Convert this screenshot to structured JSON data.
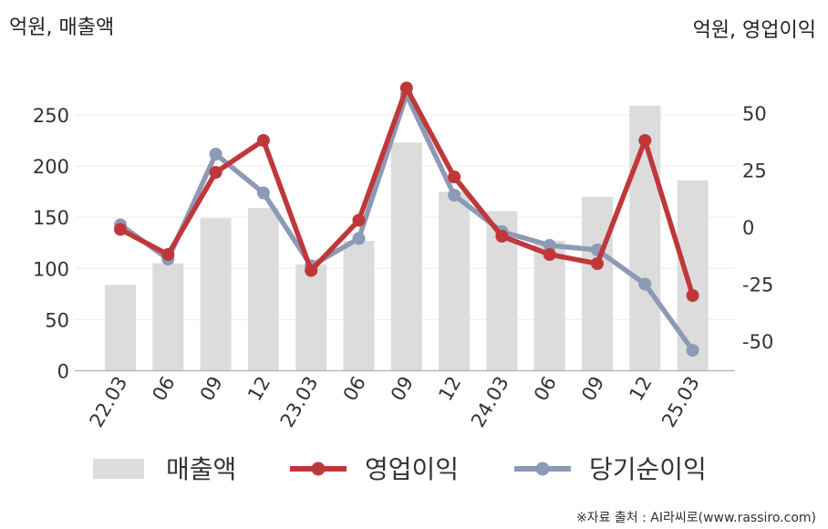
{
  "chart_data": {
    "type": "bar+line",
    "left_axis_label": "억원, 매출액",
    "right_axis_label": "억원, 영업이익",
    "categories": [
      "22.03",
      "06",
      "09",
      "12",
      "23.03",
      "06",
      "09",
      "12",
      "24.03",
      "06",
      "09",
      "12",
      "25.03"
    ],
    "left_axis": {
      "ylim": [
        0,
        275
      ],
      "ticks": [
        0,
        50,
        100,
        150,
        200,
        250
      ]
    },
    "right_axis": {
      "ylim": [
        -62,
        63
      ],
      "ticks": [
        -50,
        -25,
        0,
        25,
        50
      ]
    },
    "series": [
      {
        "name": "매출액",
        "kind": "bar",
        "axis": "left",
        "color": "#dcdcdc",
        "values": [
          84,
          105,
          149,
          159,
          104,
          127,
          223,
          175,
          156,
          127,
          170,
          259,
          186
        ]
      },
      {
        "name": "영업이익",
        "kind": "line",
        "axis": "right",
        "color": "#c0373a",
        "values": [
          -1,
          -12,
          24,
          38,
          -19,
          3,
          61,
          22,
          -4,
          -12,
          -16,
          38,
          -30
        ]
      },
      {
        "name": "당기순이익",
        "kind": "line",
        "axis": "right",
        "color": "#8d9ab5",
        "values": [
          1,
          -14,
          32,
          15,
          -17,
          -5,
          58,
          14,
          -2,
          -8,
          -10,
          -25,
          -54
        ]
      }
    ],
    "grid": true,
    "legend_position": "bottom"
  },
  "source": "※자료 출처 : AI라씨로(www.rassiro.com)"
}
